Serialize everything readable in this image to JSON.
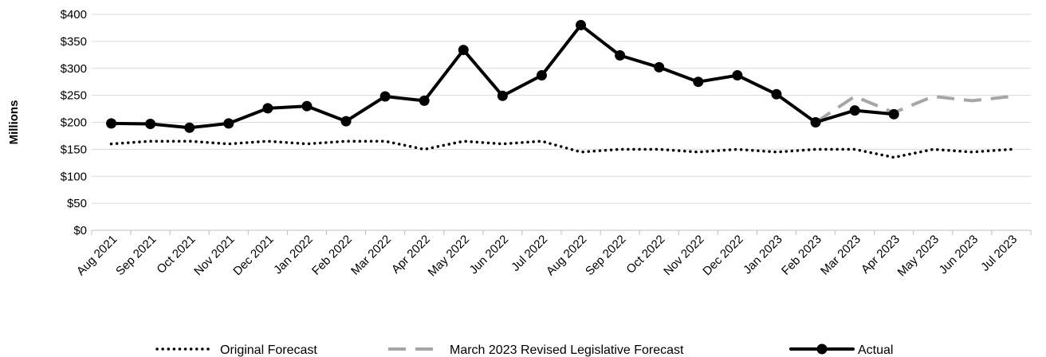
{
  "chart_data": {
    "type": "line",
    "ylabel": "Millions",
    "ylim": [
      0,
      400
    ],
    "yticks": [
      "$0",
      "$50",
      "$100",
      "$150",
      "$200",
      "$250",
      "$300",
      "$350",
      "$400"
    ],
    "grid": "horizontal",
    "legend_position": "bottom",
    "categories": [
      "Aug 2021",
      "Sep 2021",
      "Oct 2021",
      "Nov 2021",
      "Dec 2021",
      "Jan 2022",
      "Feb 2022",
      "Mar 2022",
      "Apr 2022",
      "May 2022",
      "Jun 2022",
      "Jul 2022",
      "Aug 2022",
      "Sep 2022",
      "Oct 2022",
      "Nov 2022",
      "Dec 2022",
      "Jan 2023",
      "Feb 2023",
      "Mar 2023",
      "Apr 2023",
      "May 2023",
      "Jun 2023",
      "Jul 2023"
    ],
    "series": [
      {
        "name": "Original Forecast",
        "style": "dotted",
        "color": "#000000",
        "values": [
          160,
          165,
          165,
          160,
          165,
          160,
          165,
          165,
          150,
          165,
          160,
          165,
          145,
          150,
          150,
          145,
          150,
          145,
          150,
          150,
          135,
          150,
          145,
          150
        ]
      },
      {
        "name": "March 2023 Revised Legislative Forecast",
        "style": "dashed",
        "color": "#a6a6a6",
        "values": [
          null,
          null,
          null,
          null,
          null,
          null,
          null,
          null,
          null,
          null,
          null,
          null,
          null,
          null,
          null,
          null,
          null,
          null,
          200,
          248,
          218,
          248,
          240,
          248
        ]
      },
      {
        "name": "Actual",
        "style": "solid-markers",
        "color": "#000000",
        "values": [
          198,
          197,
          190,
          198,
          226,
          230,
          202,
          248,
          240,
          334,
          249,
          287,
          380,
          324,
          302,
          275,
          287,
          252,
          200,
          222,
          215,
          null,
          null,
          null
        ]
      }
    ]
  }
}
